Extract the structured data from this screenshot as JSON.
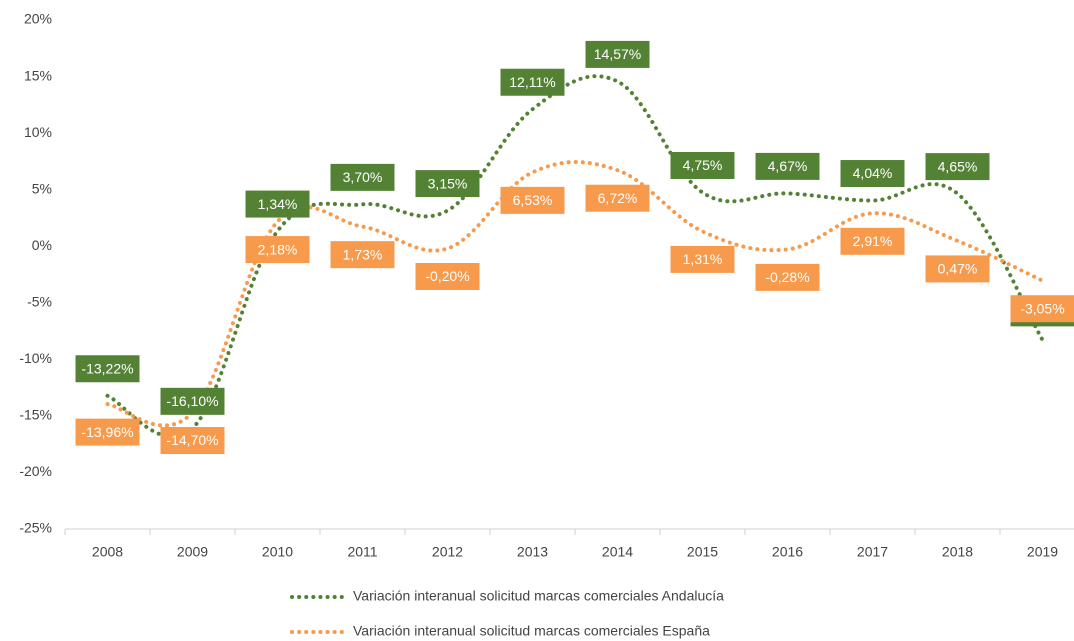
{
  "chart_data": {
    "type": "line",
    "categories": [
      "2008",
      "2009",
      "2010",
      "2011",
      "2012",
      "2013",
      "2014",
      "2015",
      "2016",
      "2017",
      "2018",
      "2019"
    ],
    "series": [
      {
        "name": "Variación interanual solicitud marcas comerciales Andalucía",
        "color": "#548235",
        "values": [
          -13.22,
          -16.1,
          1.34,
          3.7,
          3.15,
          12.11,
          14.57,
          4.75,
          4.67,
          4.04,
          4.65,
          -8.28
        ],
        "value_labels": [
          "-13,22%",
          "-16,10%",
          "1,34%",
          "3,70%",
          "3,15%",
          "12,11%",
          "14,57%",
          "4,75%",
          "4,67%",
          "4,04%",
          "4,65%",
          "-8,28%"
        ]
      },
      {
        "name": "Variación interanual solicitud marcas comerciales España",
        "color": "#f79a4c",
        "values": [
          -13.96,
          -14.7,
          2.18,
          1.73,
          -0.2,
          6.53,
          6.72,
          1.31,
          -0.28,
          2.91,
          0.47,
          -3.05
        ],
        "value_labels": [
          "-13,96%",
          "-14,70%",
          "2,18%",
          "1,73%",
          "-0,20%",
          "6,53%",
          "6,72%",
          "1,31%",
          "-0,28%",
          "2,91%",
          "0,47%",
          "-3,05%"
        ]
      }
    ],
    "ylim": [
      -25,
      20
    ],
    "yticks": [
      {
        "value": -25,
        "label": "-25%"
      },
      {
        "value": -20,
        "label": "-20%"
      },
      {
        "value": -15,
        "label": "-15%"
      },
      {
        "value": -10,
        "label": "-10%"
      },
      {
        "value": -5,
        "label": "-5%"
      },
      {
        "value": 0,
        "label": "0%"
      },
      {
        "value": 5,
        "label": "5%"
      },
      {
        "value": 10,
        "label": "10%"
      },
      {
        "value": 15,
        "label": "15%"
      },
      {
        "value": 20,
        "label": "20%"
      }
    ],
    "grid": false
  }
}
